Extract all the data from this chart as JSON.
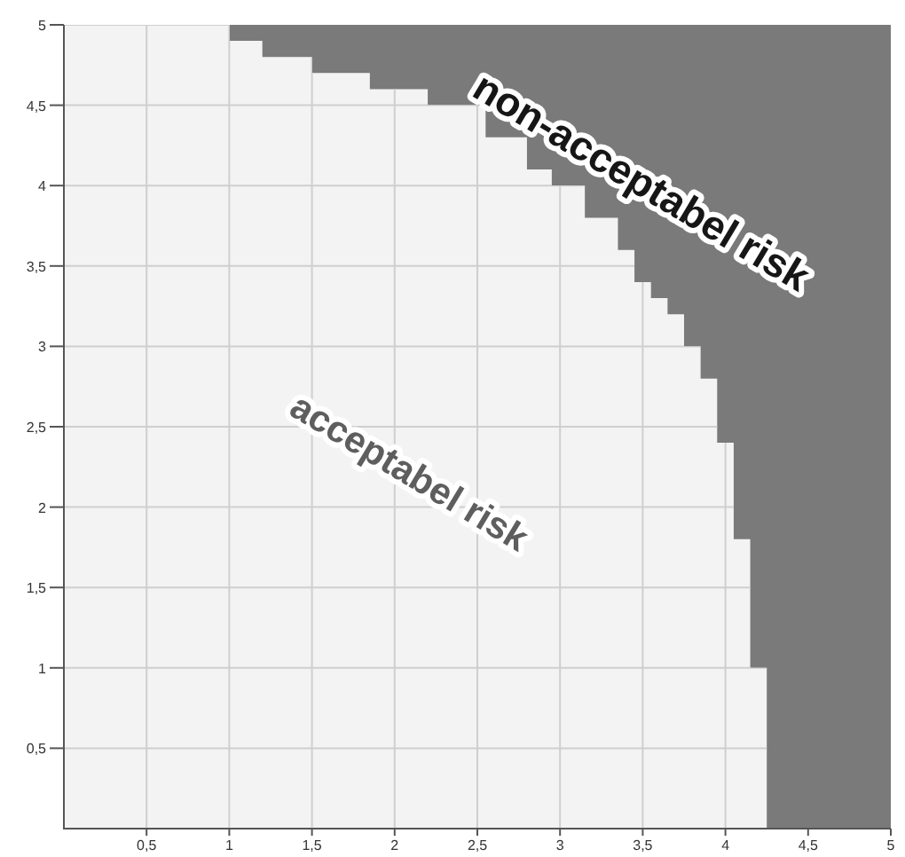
{
  "chart_data": {
    "type": "area",
    "x": [
      0,
      1,
      1,
      1.2,
      1.2,
      1.5,
      1.5,
      1.85,
      1.85,
      2.2,
      2.2,
      2.55,
      2.55,
      2.8,
      2.8,
      2.95,
      2.95,
      3.15,
      3.15,
      3.35,
      3.35,
      3.45,
      3.45,
      3.55,
      3.55,
      3.65,
      3.65,
      3.75,
      3.75,
      3.85,
      3.85,
      3.95,
      3.95,
      4.05,
      4.05,
      4.15,
      4.15,
      4.25,
      4.25,
      5
    ],
    "series": [
      {
        "name": "acceptabel risk",
        "color": "#f3f3f3",
        "values": [
          5,
          5,
          4.9,
          4.9,
          4.8,
          4.8,
          4.7,
          4.7,
          4.6,
          4.6,
          4.5,
          4.5,
          4.3,
          4.3,
          4.1,
          4.1,
          4.0,
          4.0,
          3.8,
          3.8,
          3.6,
          3.6,
          3.4,
          3.4,
          3.3,
          3.3,
          3.2,
          3.2,
          3.0,
          3.0,
          2.8,
          2.8,
          2.4,
          2.4,
          1.8,
          1.8,
          1.0,
          1.0,
          0,
          0
        ]
      }
    ],
    "bands": [
      {
        "axis": "x",
        "from": 1,
        "to": 5,
        "label": "non-acceptabel risk",
        "color": "#7a7a7a"
      }
    ],
    "xlim": [
      0,
      5
    ],
    "ylim": [
      0,
      5
    ],
    "xticks": [
      {
        "value": 0.5,
        "label": "0,5"
      },
      1,
      {
        "value": 1.5,
        "label": "1,5"
      },
      2,
      {
        "value": 2.5,
        "label": "2,5"
      },
      3,
      {
        "value": 3.5,
        "label": "3,5"
      },
      4,
      {
        "value": 4.5,
        "label": "4,5"
      },
      5
    ],
    "yticks": [
      {
        "value": 0.5,
        "label": "0,5"
      },
      1,
      {
        "value": 1.5,
        "label": "1,5"
      },
      2,
      {
        "value": 2.5,
        "label": "2,5"
      },
      3,
      {
        "value": 3.5,
        "label": "3,5"
      },
      4,
      {
        "value": 4.5,
        "label": "4,5"
      },
      5
    ],
    "grid": true
  }
}
